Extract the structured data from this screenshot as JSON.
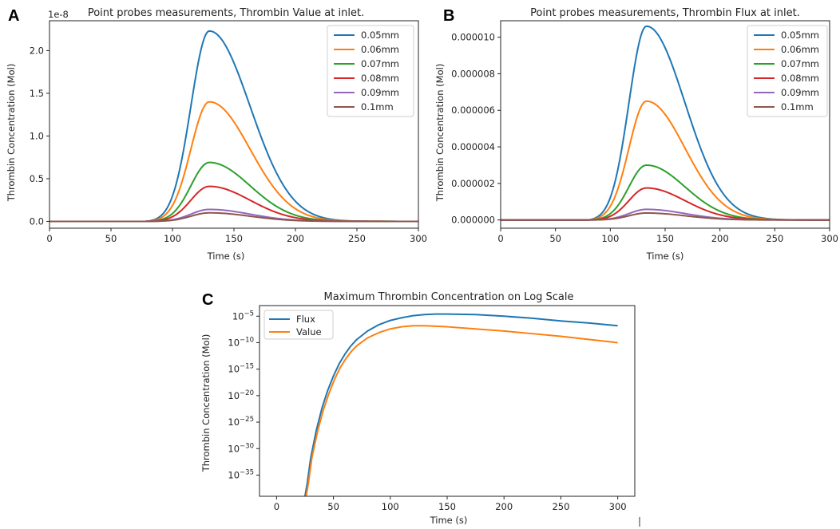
{
  "panels": [
    "A",
    "B",
    "C"
  ],
  "colors": {
    "blue": "#1f77b4",
    "orange": "#ff7f0e",
    "green": "#2ca02c",
    "red": "#d62728",
    "purple": "#9467bd",
    "brown": "#8c564b"
  },
  "chart_data": [
    {
      "id": "A",
      "type": "line",
      "title": "Point probes measurements, Thrombin Value at inlet.",
      "xlabel": "Time (s)",
      "ylabel": "Thrombin Concentration (Mol)",
      "offset_label": "1e-8",
      "xlim": [
        0,
        300
      ],
      "ylim": [
        -0.08,
        2.35
      ],
      "xticks": [
        0,
        50,
        100,
        150,
        200,
        250,
        300
      ],
      "yticks": [
        0.0,
        0.5,
        1.0,
        1.5,
        2.0
      ],
      "ytick_labels": [
        "0.0",
        "0.5",
        "1.0",
        "1.5",
        "2.0"
      ],
      "legend_position": "top-right",
      "curve_shape": {
        "onset": 78,
        "peak": 130,
        "rise_width": 15,
        "decay_width": 33
      },
      "series": [
        {
          "name": "0.05mm",
          "peak": 2.23,
          "color": "#1f77b4"
        },
        {
          "name": "0.06mm",
          "peak": 1.4,
          "color": "#ff7f0e"
        },
        {
          "name": "0.07mm",
          "peak": 0.69,
          "color": "#2ca02c"
        },
        {
          "name": "0.08mm",
          "peak": 0.41,
          "color": "#d62728"
        },
        {
          "name": "0.09mm",
          "peak": 0.14,
          "color": "#9467bd"
        },
        {
          "name": "0.1mm",
          "peak": 0.1,
          "color": "#8c564b"
        }
      ]
    },
    {
      "id": "B",
      "type": "line",
      "title": "Point probes measurements, Thrombin Flux at inlet.",
      "xlabel": "Time (s)",
      "ylabel": "Thrombin Concentration (Mol)",
      "xlim": [
        0,
        300
      ],
      "ylim": [
        -4.5e-07,
        1.09e-05
      ],
      "xticks": [
        0,
        50,
        100,
        150,
        200,
        250,
        300
      ],
      "yticks": [
        0,
        2e-06,
        4e-06,
        6e-06,
        8e-06,
        1e-05
      ],
      "ytick_labels": [
        "0.000000",
        "0.000002",
        "0.000004",
        "0.000006",
        "0.000008",
        "0.000010"
      ],
      "legend_position": "top-right",
      "curve_shape": {
        "onset": 80,
        "peak": 133,
        "rise_width": 16,
        "decay_width": 35
      },
      "series": [
        {
          "name": "0.05mm",
          "peak": 1.06e-05,
          "color": "#1f77b4"
        },
        {
          "name": "0.06mm",
          "peak": 6.5e-06,
          "color": "#ff7f0e"
        },
        {
          "name": "0.07mm",
          "peak": 3e-06,
          "color": "#2ca02c"
        },
        {
          "name": "0.08mm",
          "peak": 1.75e-06,
          "color": "#d62728"
        },
        {
          "name": "0.09mm",
          "peak": 5.8e-07,
          "color": "#9467bd"
        },
        {
          "name": "0.1mm",
          "peak": 3.8e-07,
          "color": "#8c564b"
        }
      ]
    },
    {
      "id": "C",
      "type": "line",
      "scale": "log",
      "title": "Maximum Thrombin Concentration on Log Scale",
      "xlabel": "Time (s)",
      "ylabel": "Thrombin Concentration (Mol)",
      "xlim": [
        -15,
        315
      ],
      "ylim_log10": [
        -39,
        -3
      ],
      "xticks": [
        0,
        50,
        100,
        150,
        200,
        250,
        300
      ],
      "yticks_log10": [
        -5,
        -10,
        -15,
        -20,
        -25,
        -30,
        -35
      ],
      "ytick_bases": [
        "10",
        "10",
        "10",
        "10",
        "10",
        "10",
        "10"
      ],
      "ytick_exponents": [
        "−5",
        "−10",
        "−15",
        "−20",
        "−25",
        "−30",
        "−35"
      ],
      "legend_position": "top-left",
      "series": [
        {
          "name": "Flux",
          "color": "#1f77b4",
          "x": [
            25,
            27,
            30,
            35,
            40,
            45,
            50,
            55,
            60,
            65,
            70,
            80,
            90,
            100,
            110,
            120,
            130,
            140,
            150,
            175,
            200,
            225,
            250,
            275,
            300
          ],
          "log10_y": [
            -39.0,
            -36.5,
            -31.8,
            -26.5,
            -22.3,
            -19.0,
            -16.3,
            -14.0,
            -12.2,
            -10.7,
            -9.5,
            -7.8,
            -6.6,
            -5.8,
            -5.3,
            -4.9,
            -4.7,
            -4.6,
            -4.6,
            -4.7,
            -5.0,
            -5.4,
            -5.9,
            -6.3,
            -6.8
          ]
        },
        {
          "name": "Value",
          "color": "#ff7f0e",
          "x": [
            26,
            28,
            31,
            36,
            41,
            46,
            51,
            56,
            61,
            66,
            71,
            80,
            90,
            100,
            110,
            120,
            130,
            150,
            175,
            200,
            225,
            250,
            275,
            300
          ],
          "log10_y": [
            -39.0,
            -36.5,
            -31.8,
            -26.8,
            -22.8,
            -19.6,
            -16.9,
            -14.7,
            -13.0,
            -11.6,
            -10.5,
            -9.1,
            -8.1,
            -7.4,
            -7.0,
            -6.8,
            -6.8,
            -7.0,
            -7.4,
            -7.8,
            -8.3,
            -8.8,
            -9.4,
            -10.0
          ]
        }
      ]
    }
  ]
}
